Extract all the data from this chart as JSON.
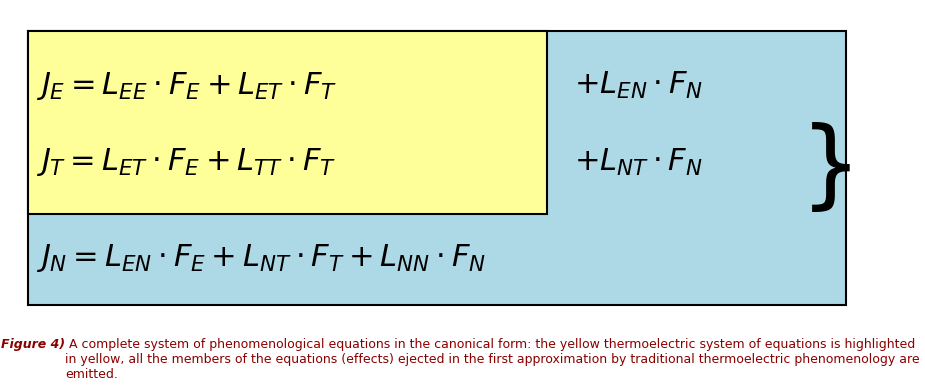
{
  "yellow_color": "#FFFF99",
  "blue_color": "#ADD8E6",
  "border_color": "#000000",
  "text_color": "#000080",
  "fig_width": 9.25,
  "fig_height": 3.89,
  "eq1": "$J_{E} = L_{EE} \\cdot F_{E} + L_{ET} \\cdot F_{T}$",
  "eq1_extra": "$+ L_{EN} \\cdot F_{N}$",
  "eq2": "$J_{T} = L_{ET} \\cdot F_{E} + L_{TT} \\cdot F_{T}$",
  "eq2_extra": "$+ L_{NT} \\cdot F_{N}$",
  "eq3": "$J_{N} = L_{EN} \\cdot F_{E} + L_{NT} \\cdot F_{T} + L_{NN} \\cdot F_{N}$",
  "caption_bold": "Figure 4)",
  "caption_normal": " A complete system of phenomenological equations in the canonical form: the yellow thermoelectric system of equations is highlighted in yellow, all the members of the equations (effects) ejected in the first approximation by traditional thermoelectric phenomenology are emitted.",
  "caption_color": "#8B0000",
  "eq_fontsize": 22,
  "caption_fontsize": 9
}
